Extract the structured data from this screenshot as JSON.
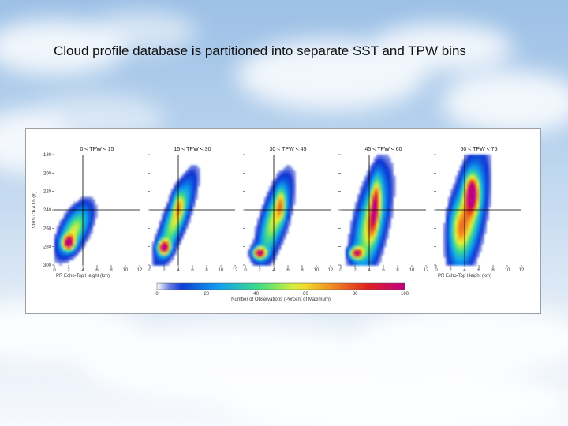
{
  "slide": {
    "title": "Cloud profile database is partitioned into separate SST and TPW bins"
  },
  "colors": {
    "sky_top": "#9cc0e6",
    "sky_bottom": "#f6f9fd",
    "figure_bg": "#ffffff"
  },
  "chart_data": {
    "type": "heatmap",
    "xlabel": "PR Echo-Top Height (km)",
    "ylabel": "VIRS Ch.4 Tb (K)",
    "x_ticks": [
      0,
      2,
      4,
      6,
      8,
      10,
      12
    ],
    "y_ticks": [
      180,
      200,
      220,
      240,
      260,
      280,
      300
    ],
    "xlim": [
      0,
      12
    ],
    "ylim": [
      180,
      300
    ],
    "y_inverted": true,
    "reference_lines": {
      "x": 4,
      "y": 240
    },
    "colorbar": {
      "label": "Number of Observations (Percent of Maximum)",
      "ticks": [
        0,
        20,
        40,
        60,
        80,
        100
      ],
      "colors": [
        "#ffffff",
        "#1030d0",
        "#10a0f0",
        "#40e080",
        "#f0f030",
        "#f09020",
        "#e02020",
        "#c00080"
      ]
    },
    "panels": [
      {
        "title": "0 < TPW < 15",
        "blobs": [
          {
            "x": 2.8,
            "y": 262,
            "sx": 1.1,
            "sy": 16,
            "rot": -0.5,
            "w": 0.55
          },
          {
            "x": 2.0,
            "y": 276,
            "sx": 0.55,
            "sy": 5,
            "rot": 0,
            "w": 0.9
          }
        ]
      },
      {
        "title": "15 < TPW < 30",
        "blobs": [
          {
            "x": 3.6,
            "y": 250,
            "sx": 0.9,
            "sy": 26,
            "rot": -0.45,
            "w": 0.55
          },
          {
            "x": 4.0,
            "y": 234,
            "sx": 0.5,
            "sy": 10,
            "rot": 0,
            "w": 0.25
          },
          {
            "x": 2.0,
            "y": 281,
            "sx": 0.55,
            "sy": 5,
            "rot": 0,
            "w": 0.95
          }
        ]
      },
      {
        "title": "30 < TPW < 45",
        "blobs": [
          {
            "x": 4.0,
            "y": 252,
            "sx": 1.0,
            "sy": 26,
            "rot": -0.35,
            "w": 0.55
          },
          {
            "x": 5.0,
            "y": 235,
            "sx": 0.45,
            "sy": 12,
            "rot": 0,
            "w": 0.35
          },
          {
            "x": 2.0,
            "y": 287,
            "sx": 0.6,
            "sy": 4,
            "rot": 0,
            "w": 1.0
          }
        ]
      },
      {
        "title": "45 < TPW < 60",
        "blobs": [
          {
            "x": 4.2,
            "y": 255,
            "sx": 1.2,
            "sy": 32,
            "rot": -0.25,
            "w": 0.6
          },
          {
            "x": 4.8,
            "y": 236,
            "sx": 0.45,
            "sy": 20,
            "rot": -0.1,
            "w": 0.6
          },
          {
            "x": 2.2,
            "y": 287,
            "sx": 0.6,
            "sy": 4,
            "rot": 0,
            "w": 0.85
          }
        ]
      },
      {
        "title": "60 < TPW < 75",
        "blobs": [
          {
            "x": 4.5,
            "y": 245,
            "sx": 1.2,
            "sy": 34,
            "rot": -0.2,
            "w": 0.65
          },
          {
            "x": 5.0,
            "y": 222,
            "sx": 0.6,
            "sy": 12,
            "rot": 0,
            "w": 0.8
          },
          {
            "x": 3.0,
            "y": 260,
            "sx": 0.8,
            "sy": 18,
            "rot": 0,
            "w": 0.3
          }
        ]
      }
    ]
  }
}
